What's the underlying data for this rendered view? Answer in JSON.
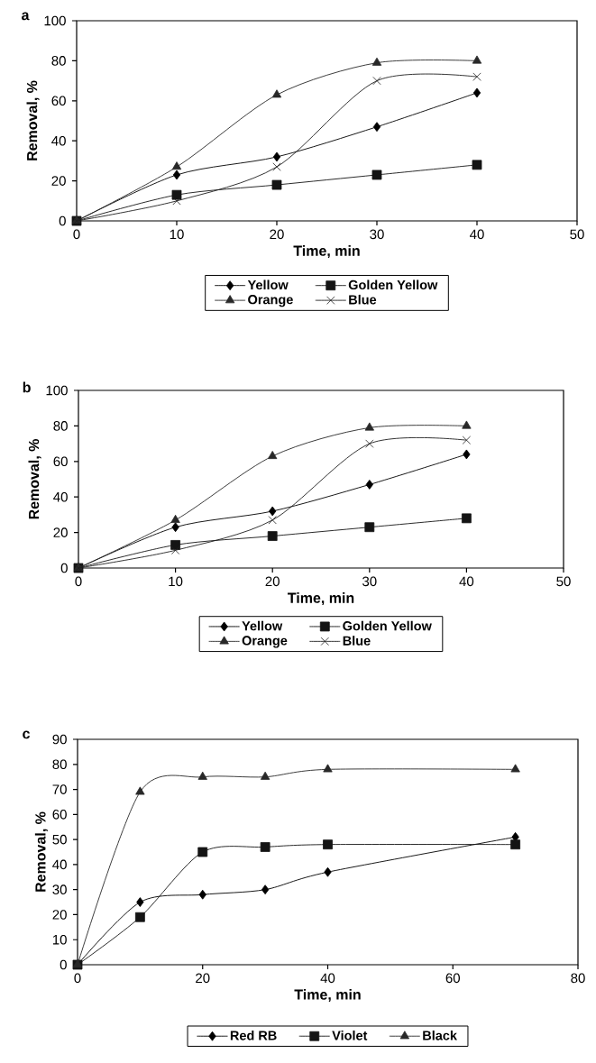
{
  "chart_data": [
    {
      "type": "line",
      "title": "a",
      "xlabel": "Time, min",
      "ylabel": "Removal, %",
      "xlim": [
        0,
        50
      ],
      "ylim": [
        0,
        100
      ],
      "xticks": [
        0,
        10,
        20,
        30,
        40,
        50
      ],
      "yticks": [
        0,
        20,
        40,
        60,
        80,
        100
      ],
      "legend": "bottom",
      "line_style": "solid",
      "x": [
        0,
        10,
        20,
        30,
        40
      ],
      "series": [
        {
          "name": "Yellow",
          "color": "#000000",
          "marker": "diamond",
          "values": [
            0,
            23,
            32,
            47,
            64
          ]
        },
        {
          "name": "Golden Yellow",
          "color": "#141414",
          "marker": "square",
          "values": [
            0,
            13,
            18,
            23,
            28
          ]
        },
        {
          "name": "Orange",
          "color": "#282828",
          "marker": "triangle",
          "values": [
            0,
            27,
            63,
            79,
            80
          ]
        },
        {
          "name": "Blue",
          "color": "#1e1e1e",
          "marker": "cross",
          "values": [
            0,
            10,
            27,
            70,
            72
          ]
        }
      ]
    },
    {
      "type": "line",
      "title": "b",
      "xlabel": "Time, min",
      "ylabel": "Removal, %",
      "xlim": [
        0,
        50
      ],
      "ylim": [
        0,
        100
      ],
      "xticks": [
        0,
        10,
        20,
        30,
        40,
        50
      ],
      "yticks": [
        0,
        20,
        40,
        60,
        80,
        100
      ],
      "legend": "bottom",
      "line_style": "solid",
      "x": [
        0,
        10,
        20,
        30,
        40
      ],
      "series": [
        {
          "name": "Yellow",
          "color": "#000000",
          "marker": "diamond",
          "values": [
            0,
            23,
            32,
            47,
            64
          ]
        },
        {
          "name": "Golden Yellow",
          "color": "#141414",
          "marker": "square",
          "values": [
            0,
            13,
            18,
            23,
            28
          ]
        },
        {
          "name": "Orange",
          "color": "#282828",
          "marker": "triangle",
          "values": [
            0,
            27,
            63,
            79,
            80
          ]
        },
        {
          "name": "Blue",
          "color": "#1e1e1e",
          "marker": "cross",
          "values": [
            0,
            10,
            27,
            70,
            72
          ]
        }
      ]
    },
    {
      "type": "line",
      "title": "c",
      "xlabel": "Time, min",
      "ylabel": "Removal, %",
      "xlim": [
        0,
        80
      ],
      "ylim": [
        0,
        90
      ],
      "xticks": [
        0,
        20,
        40,
        60,
        80
      ],
      "yticks": [
        0,
        10,
        20,
        30,
        40,
        50,
        60,
        70,
        80,
        90
      ],
      "legend": "bottom",
      "line_style": "solid",
      "x": [
        0,
        10,
        20,
        30,
        40,
        70
      ],
      "series": [
        {
          "name": "Red RB",
          "color": "#000000",
          "marker": "diamond",
          "values": [
            0,
            25,
            28,
            30,
            37,
            51
          ]
        },
        {
          "name": "Violet",
          "color": "#141414",
          "marker": "square",
          "values": [
            0,
            19,
            45,
            47,
            48,
            48
          ]
        },
        {
          "name": "Black",
          "color": "#282828",
          "marker": "triangle",
          "values": [
            0,
            69,
            75,
            75,
            78,
            78
          ]
        }
      ]
    }
  ]
}
